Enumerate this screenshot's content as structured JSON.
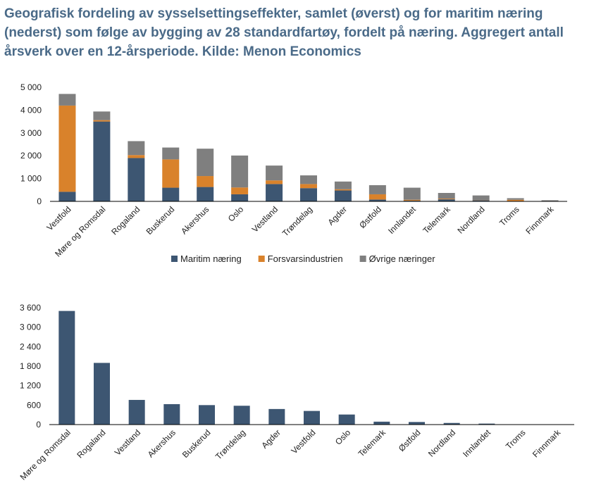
{
  "title": "Geografisk fordeling av sysselsettingseffekter, samlet (øverst) og for maritim næring (nederst) som følge av bygging av 28 standardfartøy, fordelt på næring. Aggregert antall årsverk over en 12-årsperiode. Kilde: Menon Economics",
  "chart_data": [
    {
      "type": "bar",
      "stacked": true,
      "title": "",
      "xlabel": "",
      "ylabel": "",
      "ylim": [
        0,
        5000
      ],
      "yticks": [
        0,
        1000,
        2000,
        3000,
        4000,
        5000
      ],
      "ytick_labels": [
        "0",
        "1 000",
        "2 000",
        "3 000",
        "4 000",
        "5 000"
      ],
      "categories": [
        "Vestfold",
        "Møre og Romsdal",
        "Rogaland",
        "Buskerud",
        "Akershus",
        "Oslo",
        "Vestland",
        "Trøndelag",
        "Agder",
        "Østfold",
        "Innlandet",
        "Telemark",
        "Nordland",
        "Troms",
        "Finnmark"
      ],
      "series": [
        {
          "name": "Maritim næring",
          "color": "#3d5672",
          "values": [
            420,
            3500,
            1900,
            600,
            630,
            310,
            760,
            580,
            480,
            80,
            30,
            90,
            50,
            10,
            5
          ]
        },
        {
          "name": "Forsvarsindustrien",
          "color": "#d9822b",
          "values": [
            3780,
            60,
            130,
            1240,
            480,
            300,
            160,
            180,
            50,
            230,
            40,
            30,
            10,
            60,
            5
          ]
        },
        {
          "name": "Øvrige næringer",
          "color": "#7f7f7f",
          "values": [
            510,
            380,
            610,
            520,
            1200,
            1400,
            650,
            380,
            340,
            400,
            530,
            250,
            200,
            70,
            40
          ]
        }
      ],
      "legend": "bottom"
    },
    {
      "type": "bar",
      "title": "",
      "xlabel": "",
      "ylabel": "",
      "ylim": [
        0,
        3600
      ],
      "yticks": [
        0,
        600,
        1200,
        1800,
        2400,
        3000,
        3600
      ],
      "ytick_labels": [
        "0",
        "600",
        "1 200",
        "1 800",
        "2 400",
        "3 000",
        "3 600"
      ],
      "categories": [
        "Møre og Romsdal",
        "Rogaland",
        "Vestland",
        "Akershus",
        "Buskerud",
        "Trøndelag",
        "Agder",
        "Vestfold",
        "Oslo",
        "Telemark",
        "Østfold",
        "Nordland",
        "Innlandet",
        "Troms",
        "Finnmark"
      ],
      "series": [
        {
          "name": "Maritim næring",
          "color": "#3d5672",
          "values": [
            3500,
            1900,
            760,
            630,
            600,
            580,
            480,
            420,
            310,
            90,
            80,
            50,
            30,
            10,
            5
          ]
        }
      ]
    }
  ]
}
